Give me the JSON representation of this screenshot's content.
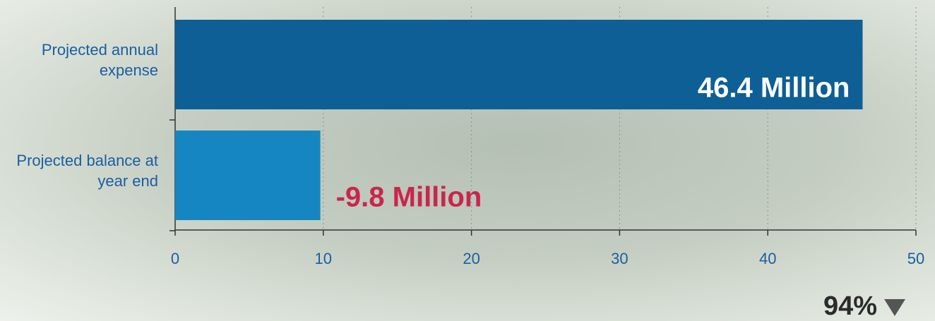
{
  "chart_data": {
    "type": "hbar",
    "categories": [
      "Projected annual expense",
      "Projected balance at year end"
    ],
    "values": [
      46.4,
      9.8
    ],
    "value_labels": [
      "46.4 Million",
      "-9.8 Million"
    ],
    "colors": [
      "#0d5f95",
      "#1686c2"
    ],
    "value_label_colors": [
      "#ffffff",
      "#c9264b"
    ],
    "xlim": [
      0,
      50
    ],
    "xticks": [
      0,
      10,
      20,
      30,
      40,
      50
    ],
    "grid": true,
    "footer": "94%"
  }
}
